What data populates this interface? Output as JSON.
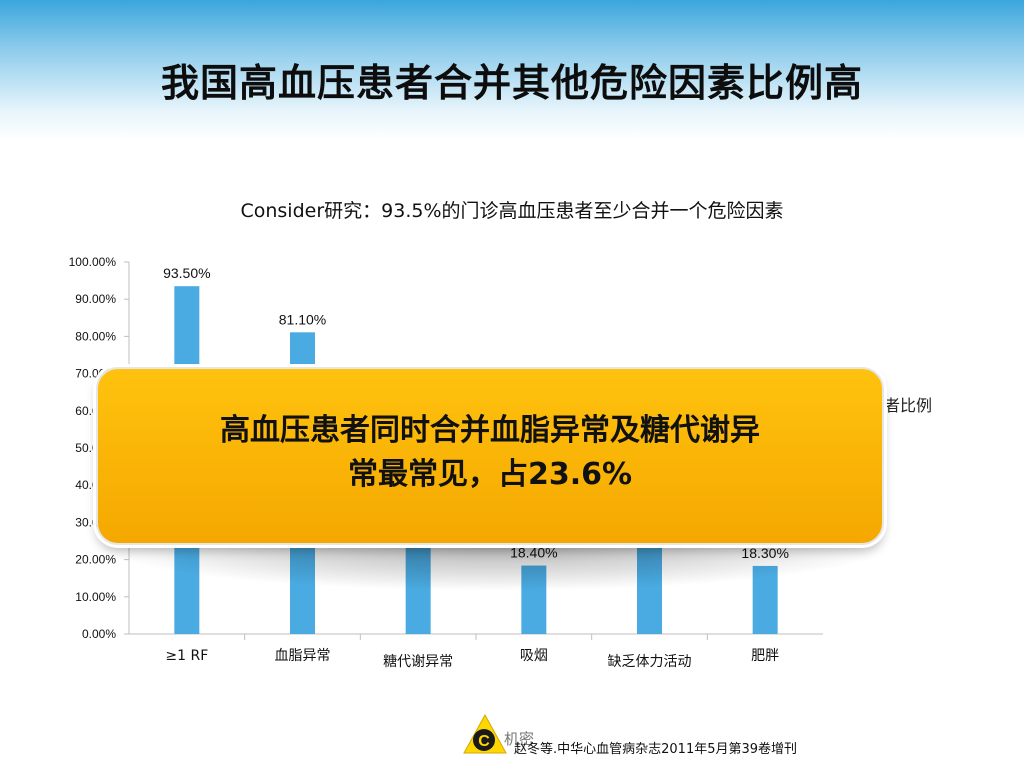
{
  "slide": {
    "title": "我国高血压患者合并其他危险因素比例高",
    "subtitle": "Consider研究：93.5%的门诊高血压患者至少合并一个危险因素",
    "callout_line1": "高血压患者同时合并血脂异常及糖代谢异",
    "callout_line2": "常最常见，占23.6%",
    "partial_legend_text": "者比例",
    "logo_letter": "C",
    "logo_text": "机密",
    "source": "赵冬等.中华心血管病杂志2011年5月第39卷增刊",
    "colors": {
      "bar": "#4aabe2",
      "callout": "#ffb800",
      "header": "#3aa6dd"
    }
  },
  "chart_data": {
    "type": "bar",
    "categories": [
      "≥1 RF",
      "血脂异常",
      "糖代谢异常",
      "吸烟",
      "缺乏体力活动",
      "肥胖"
    ],
    "values": [
      93.5,
      81.1,
      null,
      18.4,
      null,
      18.3
    ],
    "data_labels": [
      "93.50%",
      "81.10%",
      "",
      "18.40%",
      "",
      "18.30%"
    ],
    "y_ticks": [
      "100.00%",
      "90.00%",
      "80.00%",
      "70.00%",
      "60.00%",
      "50.00%",
      "40.00%",
      "30.00%",
      "20.00%",
      "10.00%",
      "0.00%"
    ],
    "ylim": [
      0,
      100
    ],
    "grid": false
  }
}
